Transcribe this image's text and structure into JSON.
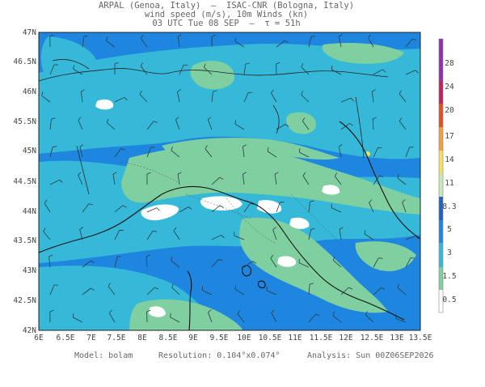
{
  "header": {
    "line1": "ARPAL (Genoa, Italy)  –  ISAC-CNR (Bologna, Italy)",
    "line2": "wind speed (m/s), 10m Winds (kn)",
    "line3": "03 UTC Tue 08 SEP  –  τ = 51h"
  },
  "axes": {
    "lat_labels": [
      "47N",
      "46.5N",
      "46N",
      "45.5N",
      "45N",
      "44.5N",
      "44N",
      "43.5N",
      "43N",
      "42.5N",
      "42N"
    ],
    "lon_labels": [
      "6E",
      "6.5E",
      "7E",
      "7.5E",
      "8E",
      "8.5E",
      "9E",
      "9.5E",
      "10E",
      "10.5E",
      "11E",
      "11.5E",
      "12E",
      "12.5E",
      "13E",
      "13.5E"
    ]
  },
  "colorbar": {
    "labels": [
      "0.5",
      "1.5",
      "3",
      "5",
      "8.3",
      "11",
      "14",
      "17",
      "20",
      "24",
      "28"
    ],
    "colors": [
      "#ffffff",
      "#7fcfa0",
      "#36b8d8",
      "#1f86e0",
      "#2060c0",
      "#c8e8b8",
      "#f4e060",
      "#f0a040",
      "#e05020",
      "#c02060",
      "#9030b0"
    ]
  },
  "map_colors": {
    "sea": "#1f86e0",
    "light_blue": "#36b8d8",
    "green": "#7fcfa0",
    "white": "#ffffff",
    "coast": "#111111",
    "barb": "#2a3a40"
  },
  "footer": {
    "model": "Model: bolam",
    "resolution": "Resolution: 0.104°x0.074°",
    "analysis": "Analysis: Sun 00Z06SEP2026"
  }
}
